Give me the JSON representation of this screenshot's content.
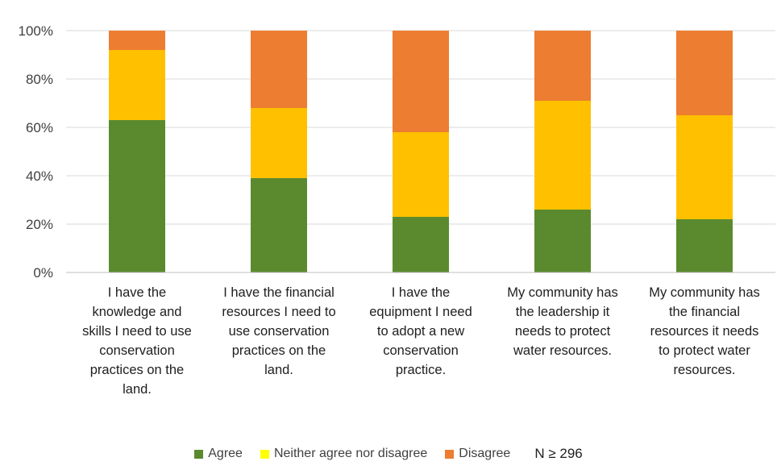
{
  "chart_data": {
    "type": "bar",
    "stacked": true,
    "percent": true,
    "categories": [
      [
        "I have the",
        "knowledge and",
        "skills I need to use",
        "conservation",
        "practices on the",
        "land."
      ],
      [
        "I have the financial",
        "resources I need to",
        "use conservation",
        "practices on the",
        "land."
      ],
      [
        "I have the",
        "equipment I need",
        "to adopt a new",
        "conservation",
        "practice."
      ],
      [
        "My community has",
        "the leadership it",
        "needs to protect",
        "water resources."
      ],
      [
        "My community has",
        "the financial",
        "resources it needs",
        "to protect water",
        "resources."
      ]
    ],
    "series": [
      {
        "name": "Agree",
        "color": "#5b8a2e",
        "values": [
          63,
          39,
          23,
          26,
          22
        ]
      },
      {
        "name": "Neither agree nor disagree",
        "color": "#ffc000",
        "values": [
          29,
          29,
          35,
          45,
          43
        ]
      },
      {
        "name": "Disagree",
        "color": "#ed7d31",
        "values": [
          8,
          32,
          42,
          29,
          35
        ]
      }
    ],
    "ylim": [
      0,
      100
    ],
    "yticks": [
      "0%",
      "20%",
      "40%",
      "60%",
      "80%",
      "100%"
    ],
    "grid": true,
    "legend_position": "bottom",
    "note": "N ≥ 296"
  },
  "legend": {
    "items": [
      {
        "label": "Agree",
        "color": "#5b8a2e"
      },
      {
        "label": "Neither agree nor disagree",
        "color": "#ffff00"
      },
      {
        "label": "Disagree",
        "color": "#ed7d31"
      }
    ],
    "note": "N ≥ 296"
  }
}
